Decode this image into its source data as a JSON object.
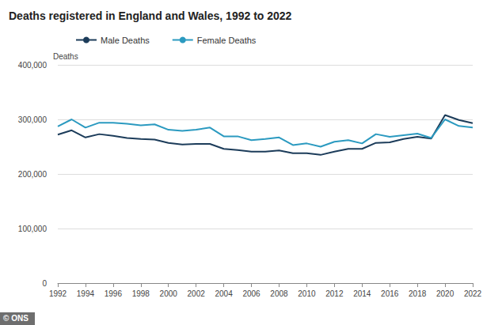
{
  "chart_data": {
    "type": "line",
    "title": "Deaths registered in England and Wales, 1992 to 2022",
    "y_label": "Deaths",
    "annotations": [
      "© ONS"
    ],
    "x": [
      1992,
      1993,
      1994,
      1995,
      1996,
      1997,
      1998,
      1999,
      2000,
      2001,
      2002,
      2003,
      2004,
      2005,
      2006,
      2007,
      2008,
      2009,
      2010,
      2011,
      2012,
      2013,
      2014,
      2015,
      2016,
      2017,
      2018,
      2019,
      2020,
      2021,
      2022
    ],
    "series": [
      {
        "name": "Male Deaths",
        "color": "#1c3c5a",
        "values": [
          272000,
          280000,
          267000,
          273000,
          270000,
          266000,
          264000,
          263000,
          257000,
          254000,
          255000,
          255000,
          246000,
          244000,
          241000,
          241000,
          243000,
          238000,
          238000,
          235000,
          241000,
          246000,
          246000,
          257000,
          258000,
          264000,
          268000,
          265000,
          308000,
          299000,
          293000
        ]
      },
      {
        "name": "Female Deaths",
        "color": "#2b9ac0",
        "values": [
          287000,
          300000,
          285000,
          294000,
          294000,
          292000,
          289000,
          291000,
          281000,
          279000,
          281000,
          285000,
          269000,
          269000,
          262000,
          264000,
          267000,
          253000,
          256000,
          250000,
          259000,
          262000,
          256000,
          273000,
          268000,
          271000,
          274000,
          266000,
          300000,
          288000,
          285000
        ]
      }
    ],
    "xlim": [
      1992,
      2022
    ],
    "xticks": [
      1992,
      1994,
      1996,
      1998,
      2000,
      2002,
      2004,
      2006,
      2008,
      2010,
      2012,
      2014,
      2016,
      2018,
      2020,
      2022
    ],
    "ylim": [
      0,
      400000
    ],
    "yticks": [
      0,
      {
        "value": 100000,
        "label": "100,000"
      },
      {
        "value": 200000,
        "label": "200,000"
      },
      {
        "value": 300000,
        "label": "300,000"
      },
      {
        "value": 400000,
        "label": "400,000"
      }
    ],
    "grid": true,
    "legend": "top-left"
  }
}
